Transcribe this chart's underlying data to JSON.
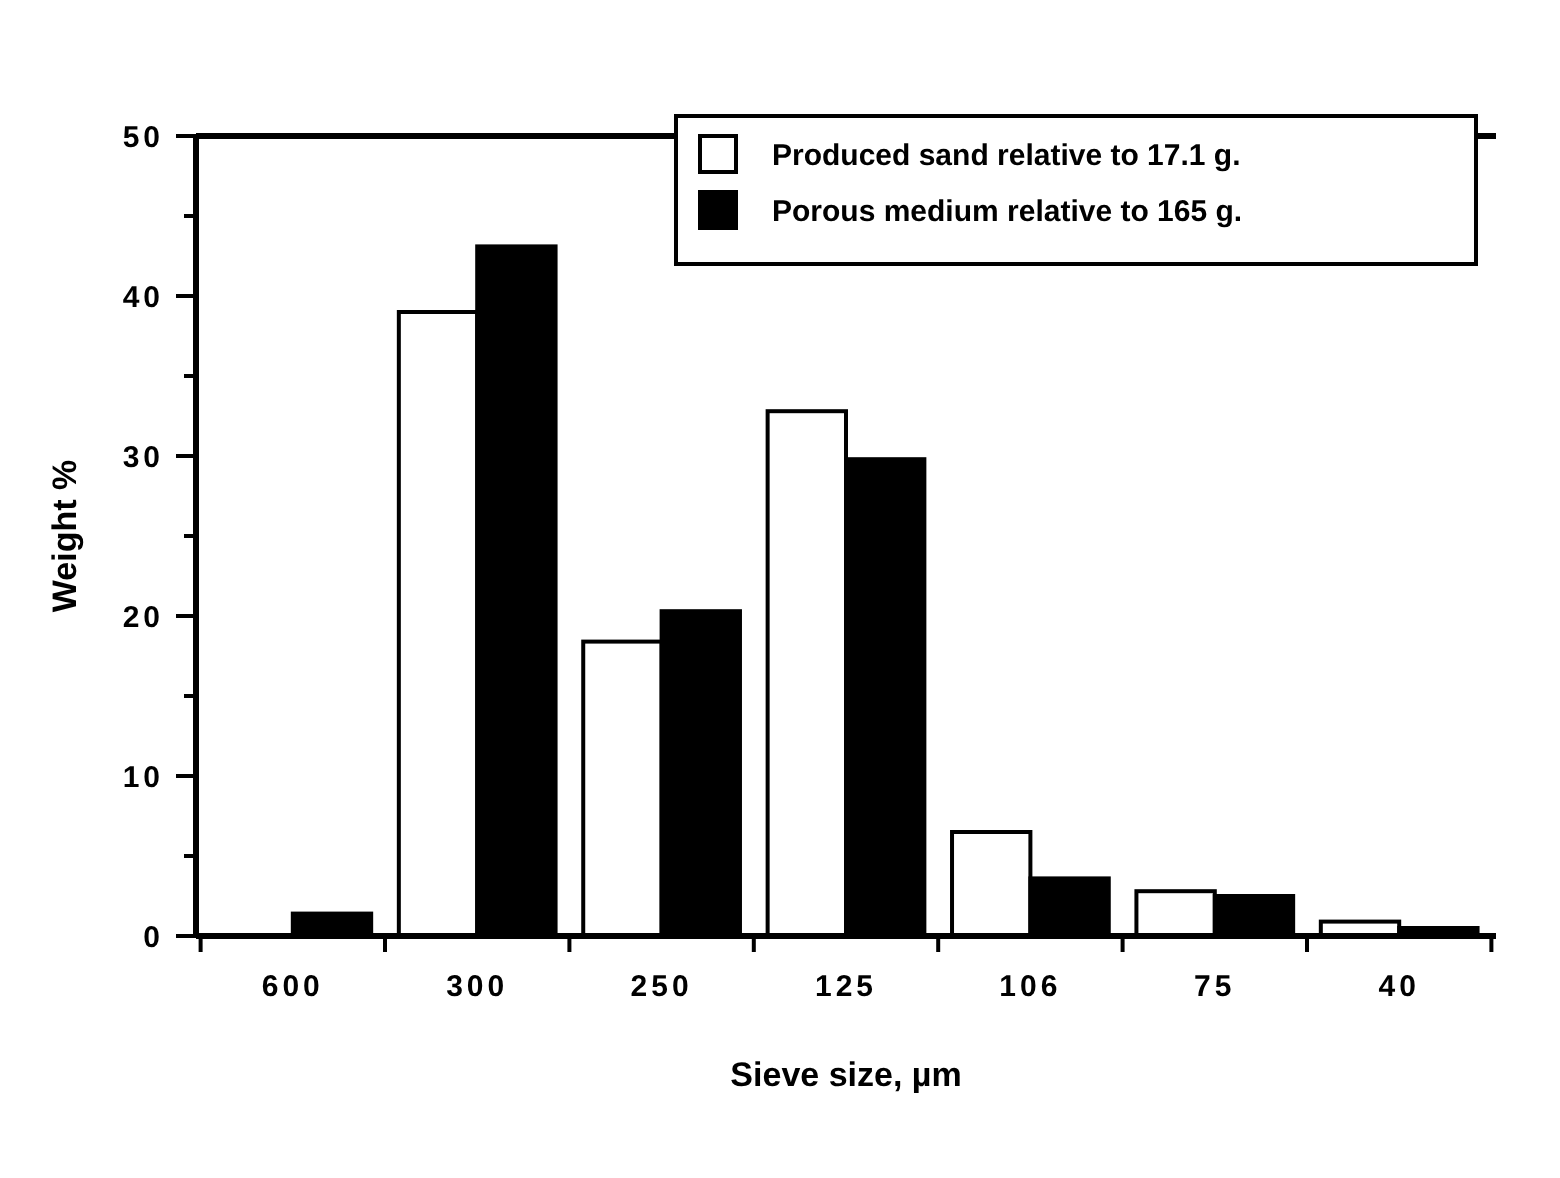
{
  "chart_data": {
    "type": "bar",
    "xlabel": "Sieve size, µm",
    "ylabel": "Weight %",
    "categories": [
      "600",
      "300",
      "250",
      "125",
      "106",
      "75",
      "40"
    ],
    "series": [
      {
        "name": "Produced sand relative to 17.1 g.",
        "color": "#ffffff",
        "values": [
          null,
          39.0,
          18.4,
          32.8,
          6.5,
          2.8,
          0.9
        ]
      },
      {
        "name": "Porous medium relative to 165 g.",
        "color": "#000000",
        "values": [
          1.4,
          43.1,
          20.3,
          29.8,
          3.6,
          2.5,
          0.5
        ]
      }
    ],
    "ylim": [
      0,
      50
    ],
    "yticks": [
      0,
      {
        "value": 5,
        "label": null
      },
      10,
      {
        "value": 15,
        "label": null
      },
      20,
      {
        "value": 25,
        "label": null
      },
      30,
      {
        "value": 35,
        "label": null
      },
      40,
      {
        "value": 45,
        "label": null
      },
      50
    ],
    "legend": "top right",
    "grid": false
  }
}
